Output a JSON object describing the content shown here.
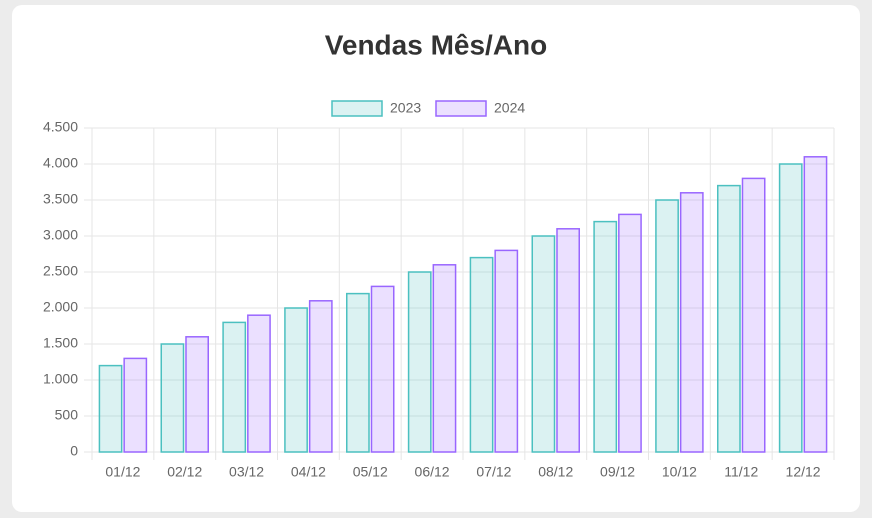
{
  "chart_data": {
    "type": "bar",
    "title": "Vendas Mês/Ano",
    "categories": [
      "01/12",
      "02/12",
      "03/12",
      "04/12",
      "05/12",
      "06/12",
      "07/12",
      "08/12",
      "09/12",
      "10/12",
      "11/12",
      "12/12"
    ],
    "series": [
      {
        "name": "2023",
        "color": "#4bc0c0",
        "values": [
          1200,
          1500,
          1800,
          2000,
          2200,
          2500,
          2700,
          3000,
          3200,
          3500,
          3700,
          4000
        ]
      },
      {
        "name": "2024",
        "color": "#9966ff",
        "values": [
          1300,
          1600,
          1900,
          2100,
          2300,
          2600,
          2800,
          3100,
          3300,
          3600,
          3800,
          4100
        ]
      }
    ],
    "ylim": [
      0,
      4500
    ],
    "yticks": [
      0,
      500,
      {
        "value": 1000,
        "label": "1.000"
      },
      {
        "value": 1500,
        "label": "1.500"
      },
      {
        "value": 2000,
        "label": "2.000"
      },
      {
        "value": 2500,
        "label": "2.500"
      },
      {
        "value": 3000,
        "label": "3.000"
      },
      {
        "value": 3500,
        "label": "3.500"
      },
      {
        "value": 4000,
        "label": "4.000"
      },
      {
        "value": 4500,
        "label": "4.500"
      }
    ],
    "grid": true,
    "legend": "top"
  }
}
